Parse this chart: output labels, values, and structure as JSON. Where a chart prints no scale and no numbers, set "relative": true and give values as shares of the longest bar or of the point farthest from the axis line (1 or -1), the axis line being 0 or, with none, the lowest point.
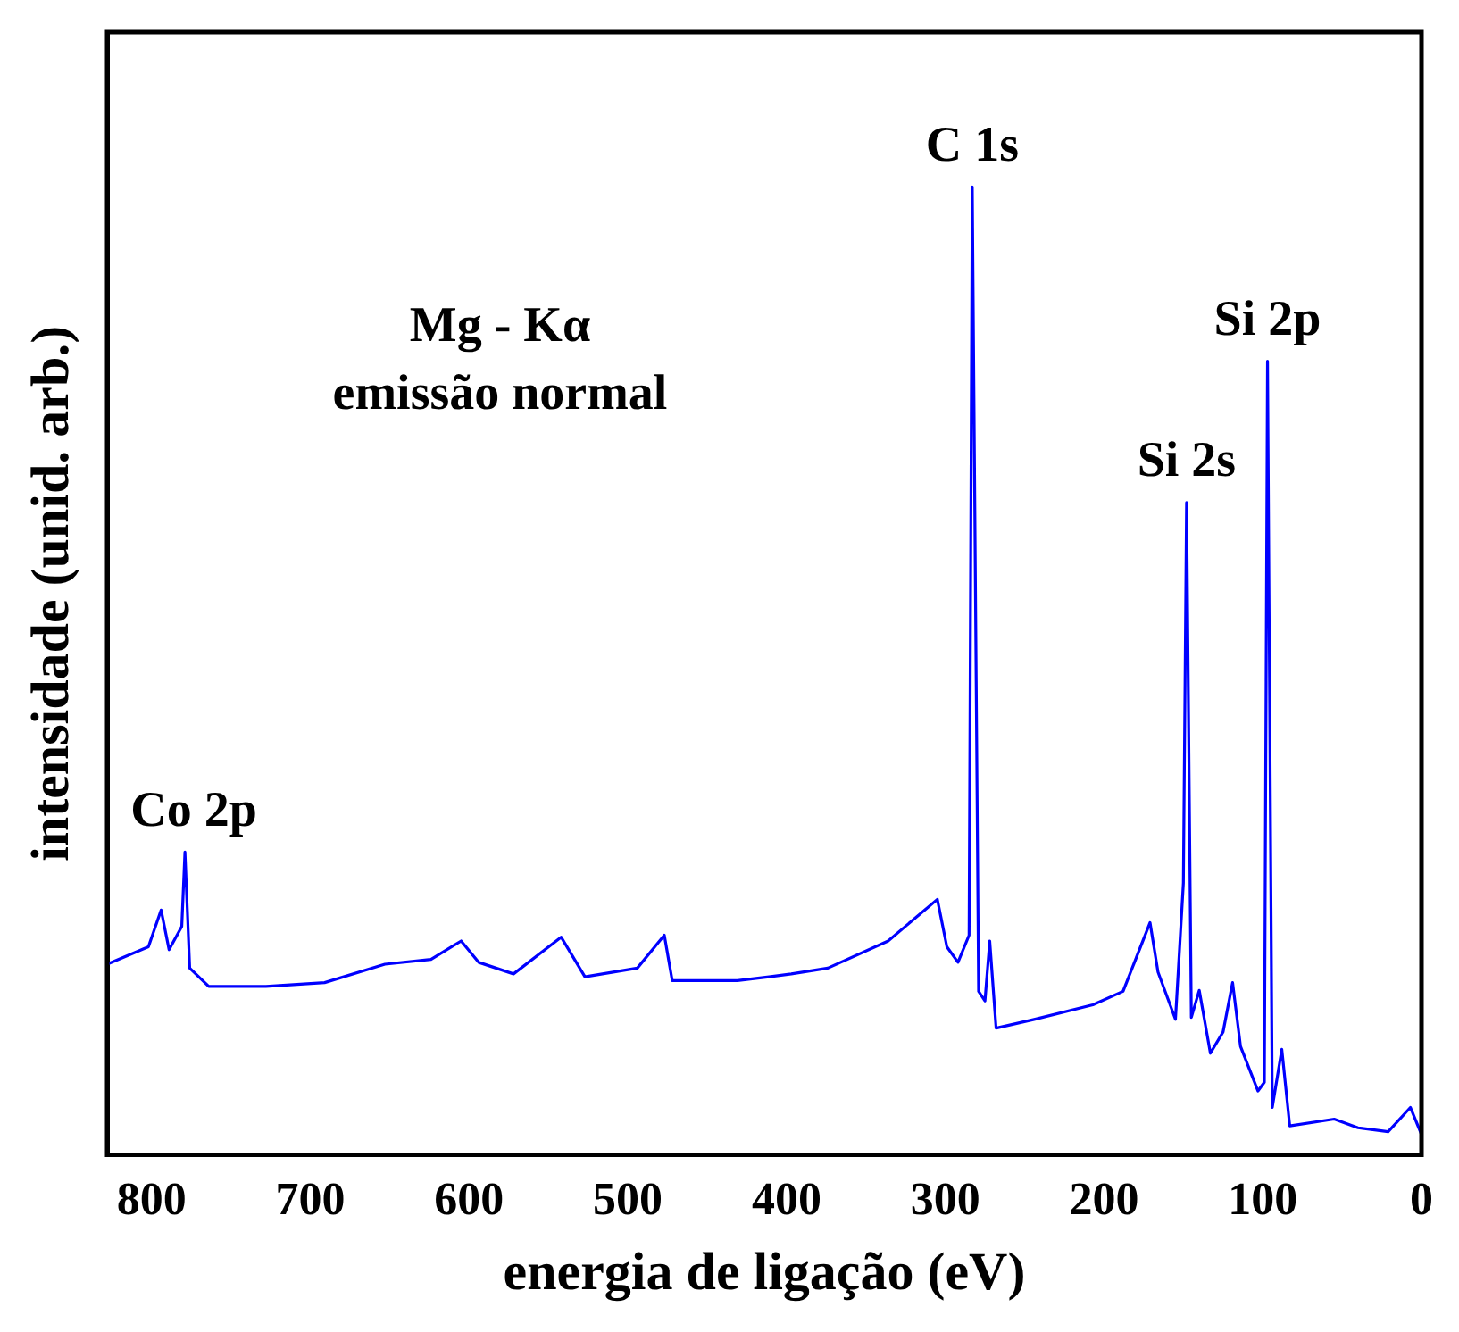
{
  "chart_data": {
    "type": "line",
    "relative": true,
    "xlabel": "energia de ligação (eV)",
    "ylabel": "intensidade (unid. arb.)",
    "xlim": [
      828,
      0
    ],
    "xticks": [
      800,
      700,
      600,
      500,
      400,
      300,
      200,
      100,
      0
    ],
    "grid": false,
    "legend": false,
    "marker": "none",
    "line_style": "solid",
    "series": [
      {
        "color": "#0000ff",
        "x": [
          828,
          802,
          794,
          789,
          781,
          779,
          776,
          764,
          728,
          691,
          653,
          624,
          605,
          594,
          572,
          542,
          527,
          494,
          477,
          472,
          431,
          411,
          397,
          374,
          336,
          305,
          299,
          292,
          285,
          283,
          279,
          275,
          272,
          268,
          244,
          207,
          188,
          171,
          166,
          155,
          150,
          148,
          145,
          140,
          133,
          125,
          119,
          114,
          103,
          99,
          97,
          94,
          88,
          83,
          55,
          40,
          21,
          7,
          0
        ],
        "values": [
          0.197,
          0.215,
          0.253,
          0.212,
          0.236,
          0.313,
          0.193,
          0.174,
          0.174,
          0.178,
          0.197,
          0.202,
          0.221,
          0.199,
          0.187,
          0.225,
          0.184,
          0.193,
          0.227,
          0.18,
          0.18,
          0.184,
          0.187,
          0.193,
          0.221,
          0.264,
          0.215,
          0.199,
          0.227,
          1.0,
          0.169,
          0.159,
          0.221,
          0.131,
          0.14,
          0.155,
          0.169,
          0.24,
          0.189,
          0.14,
          0.281,
          0.674,
          0.142,
          0.17,
          0.105,
          0.127,
          0.178,
          0.112,
          0.066,
          0.075,
          0.82,
          0.049,
          0.109,
          0.03,
          0.037,
          0.028,
          0.024,
          0.049,
          0.021
        ]
      }
    ],
    "annotations": [
      {
        "text": "C 1s",
        "x": 283,
        "y": 1.0
      },
      {
        "text": "Si 2s",
        "x": 148,
        "y": 0.674
      },
      {
        "text": "Si 2p",
        "x": 97,
        "y": 0.82
      },
      {
        "text": "Co 2p",
        "x": 779,
        "y": 0.313
      },
      "Mg - Kα",
      "emissão normal"
    ]
  }
}
